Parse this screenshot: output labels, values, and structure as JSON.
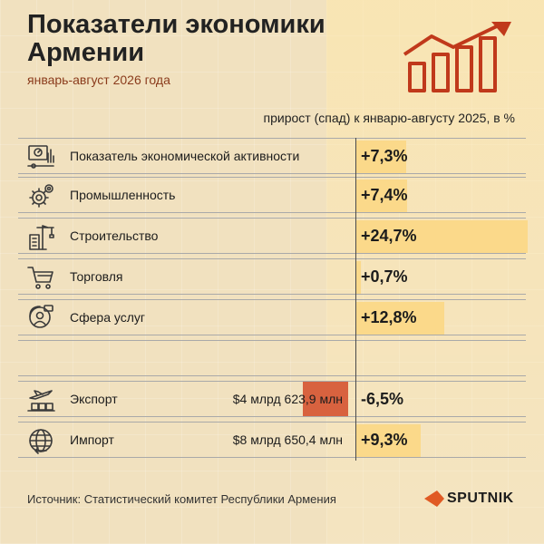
{
  "header": {
    "title": "Показатели экономики Армении",
    "subtitle": "январь-август 2026 года",
    "column_header": "прирост (спад) к январю-августу 2025, в %"
  },
  "chart_data": {
    "type": "bar",
    "title": "Показатели экономики Армении",
    "subtitle": "январь-август 2026 года",
    "ylabel": "прирост (спад) к январю-августу 2025, в %",
    "categories": [
      "Показатель экономической активности",
      "Промышленность",
      "Строительство",
      "Торговля",
      "Сфера услуг",
      "Экспорт",
      "Импорт"
    ],
    "values": [
      7.3,
      7.4,
      24.7,
      0.7,
      12.8,
      -6.5,
      9.3
    ],
    "value_labels": [
      "+7,3%",
      "+7,4%",
      "+24,7%",
      "+0,7%",
      "+12,8%",
      "-6,5%",
      "+9,3%"
    ],
    "amounts": [
      "",
      "",
      "",
      "",
      "",
      "$4 млрд 623,9 млн",
      "$8 млрд 650,4 млн"
    ],
    "icons": [
      "activity-dashboard-icon",
      "industry-gears-icon",
      "construction-crane-icon",
      "shopping-cart-icon",
      "customer-service-icon",
      "export-plane-icon",
      "import-globe-icon"
    ],
    "colors": {
      "positive": "#fbd98a",
      "negative": "#d8623f",
      "accent": "#c0391b"
    }
  },
  "footer": {
    "source": "Источник: Статистический комитет Республики Армения",
    "logo": "SPUTNIK"
  }
}
